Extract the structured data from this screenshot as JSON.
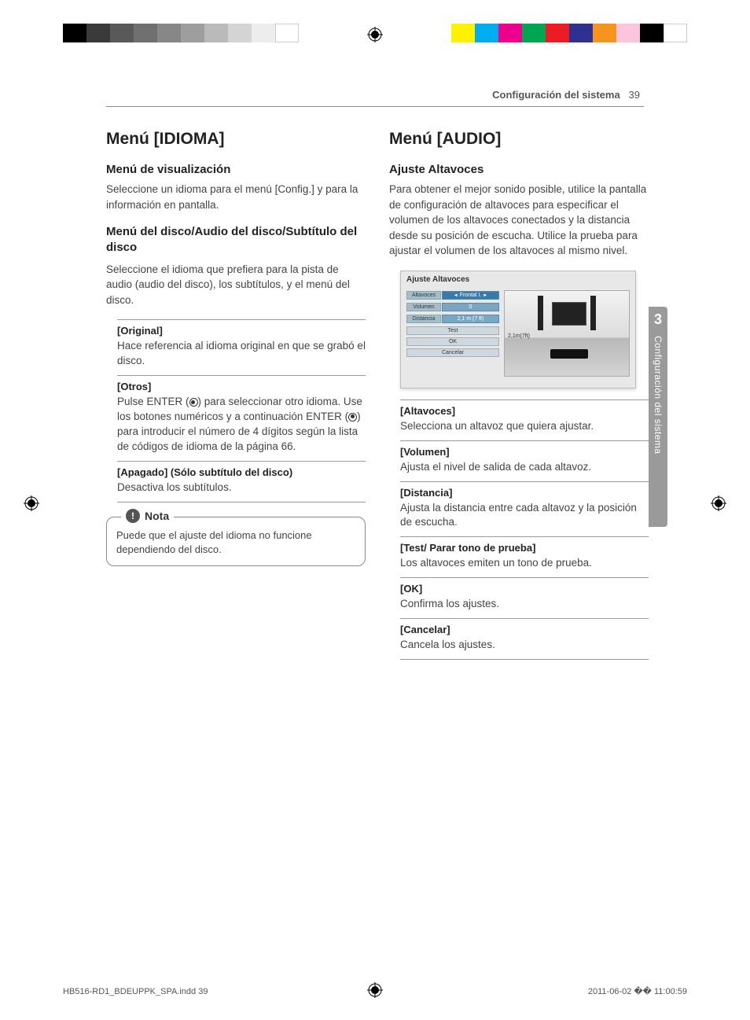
{
  "header": {
    "section": "Configuración del sistema",
    "page": "39"
  },
  "colorbars": {
    "left": [
      "#000000",
      "#3a3a3a",
      "#595959",
      "#707070",
      "#878787",
      "#9e9e9e",
      "#bababa",
      "#d4d4d4",
      "#ededed",
      "#ffffff"
    ],
    "right": [
      "#fff200",
      "#00aeef",
      "#ec008c",
      "#00a651",
      "#ed1c24",
      "#2e3192",
      "#f7941d",
      "#fdc4dd",
      "#000000",
      "#ffffff"
    ]
  },
  "left": {
    "h1": "Menú [IDIOMA]",
    "sec1_h": "Menú de visualización",
    "sec1_p": "Seleccione un idioma para el menú [Config.] y para la información en pantalla.",
    "sec2_h": "Menú del disco/Audio del disco/Subtítulo del disco",
    "sec2_p": "Seleccione el idioma que prefiera para la pista de audio (audio del disco), los subtítulos, y el menú del disco.",
    "items": [
      {
        "t": "[Original]",
        "d": "Hace referencia al idioma original en que se grabó el disco."
      },
      {
        "t": "[Otros]",
        "d": "Pulse ENTER (◉) para seleccionar otro idioma. Use los botones numéricos y a continuación ENTER (◉) para introducir el número de 4 dígitos según la lista de códigos de idioma de la página 66."
      },
      {
        "t": "[Apagado] (Sólo subtítulo del disco)",
        "d": "Desactiva los subtítulos."
      }
    ],
    "note_label": "Nota",
    "note_text": "Puede que el ajuste del idioma no funcione dependiendo del disco."
  },
  "right": {
    "h1": "Menú [AUDIO]",
    "sec1_h": "Ajuste Altavoces",
    "sec1_p": "Para obtener el mejor sonido posible, utilice la pantalla de configuración de altavoces para especificar el volumen de los altavoces conectados y la distancia desde su posición de escucha. Utilice la prueba para ajustar el volumen de los altavoces al mismo nivel.",
    "figure": {
      "title": "Ajuste Altavoces",
      "rows": [
        {
          "k": "Altavoces",
          "v": "Frontal I."
        },
        {
          "k": "Volumen",
          "v": "0"
        },
        {
          "k": "Distancia",
          "v": "2,1 m (7 ft)"
        }
      ],
      "btns": [
        "Test",
        "OK",
        "Cancelar"
      ],
      "dist_label": "2,1m(7ft)"
    },
    "items": [
      {
        "t": "[Altavoces]",
        "d": "Selecciona un altavoz que quiera ajustar."
      },
      {
        "t": "[Volumen]",
        "d": "Ajusta el nivel de salida de cada altavoz."
      },
      {
        "t": "[Distancia]",
        "d": "Ajusta la distancia entre cada altavoz y la posición de escucha."
      },
      {
        "t": "[Test/ Parar tono de prueba]",
        "d": "Los altavoces emiten un tono de prueba."
      },
      {
        "t": "[OK]",
        "d": "Confirma los ajustes."
      },
      {
        "t": "[Cancelar]",
        "d": "Cancela los ajustes."
      }
    ]
  },
  "sidetab": {
    "num": "3",
    "text": "Configuración del sistema"
  },
  "footer": {
    "file": "HB516-RD1_BDEUPPK_SPA.indd   39",
    "date": "2011-06-02   �� 11:00:59"
  }
}
